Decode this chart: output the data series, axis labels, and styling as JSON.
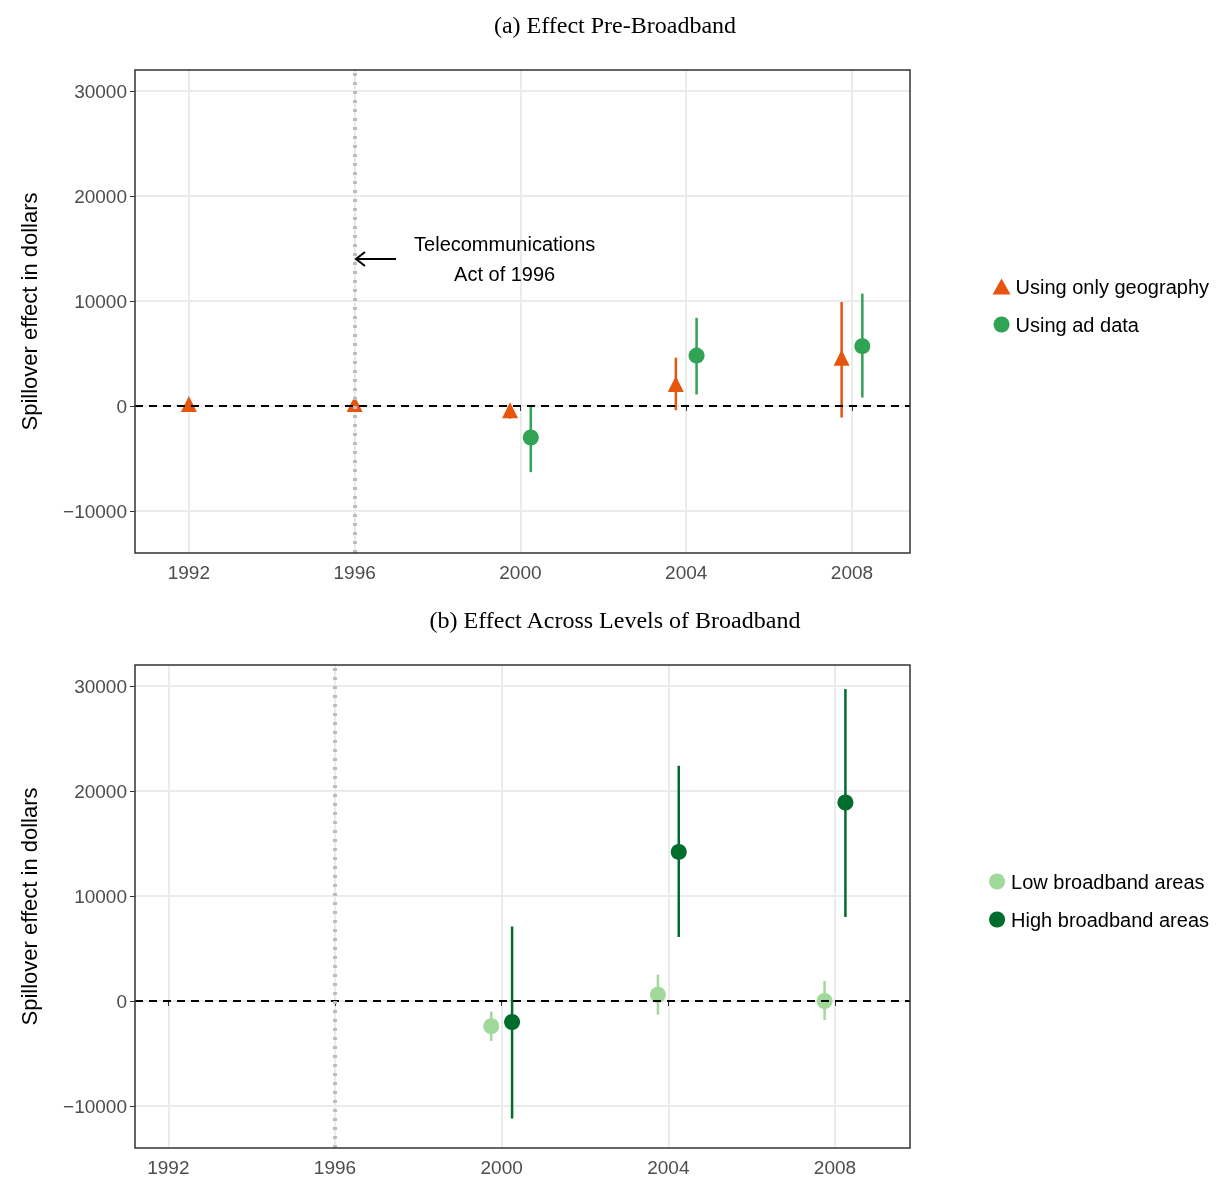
{
  "chart_data": [
    {
      "type": "scatter",
      "title": "(a) Effect Pre-Broadband",
      "ylabel": "Spillover effect in dollars",
      "xlim": [
        1990.7,
        2009.4
      ],
      "xticks": [
        1992,
        1996,
        2000,
        2004,
        2008
      ],
      "ylim": [
        -14000,
        32000
      ],
      "yticks": [
        {
          "value": -10000,
          "label": "−10000"
        },
        0,
        10000,
        20000,
        30000
      ],
      "grid": true,
      "legend": "right",
      "series": [
        {
          "name": "Using only geography",
          "color": "#e6550d",
          "marker": "triangle",
          "x": [
            1992,
            1996,
            1999.75,
            2003.75,
            2007.75
          ],
          "values": [
            200,
            200,
            -400,
            2100,
            4600
          ],
          "errors": [
            null,
            null,
            [
              -1200,
              -400
            ],
            [
              -400,
              4600
            ],
            [
              -1100,
              9900
            ]
          ]
        },
        {
          "name": "Using ad data",
          "color": "#31a354",
          "marker": "circle",
          "x": [
            2000.25,
            2004.25,
            2008.25
          ],
          "values": [
            -3000,
            4800,
            5700
          ],
          "errors": [
            [
              -6300,
              100
            ],
            [
              1100,
              8400
            ],
            [
              800,
              10700
            ]
          ]
        }
      ],
      "ref_lines": [
        {
          "axis": "y",
          "value": 0,
          "color": "#000000",
          "line_style": "dashed"
        },
        {
          "axis": "x",
          "value": 1996,
          "color": "#bdbdbd",
          "line_style": "dotted"
        }
      ],
      "annotations": [
        {
          "text": "Telecommunications\nAct of 1996",
          "x": 1996,
          "y": 14000
        }
      ]
    },
    {
      "type": "scatter",
      "title": "(b) Effect Across Levels of Broadband",
      "ylabel": "Spillover effect in dollars",
      "xlim": [
        1991.2,
        2009.8
      ],
      "xticks": [
        1992,
        1996,
        2000,
        2004,
        2008
      ],
      "ylim": [
        -14000,
        32000
      ],
      "yticks": [
        {
          "value": -10000,
          "label": "−10000"
        },
        0,
        10000,
        20000,
        30000
      ],
      "grid": true,
      "legend": "right",
      "series": [
        {
          "name": "Low broadband areas",
          "color": "#a1d99b",
          "marker": "circle",
          "x": [
            1999.75,
            2003.75,
            2007.75
          ],
          "values": [
            -2400,
            600,
            0
          ],
          "errors": [
            [
              -3800,
              -1000
            ],
            [
              -1300,
              2500
            ],
            [
              -1800,
              1900
            ]
          ]
        },
        {
          "name": "High broadband areas",
          "color": "#006d2c",
          "marker": "circle",
          "x": [
            2000.25,
            2004.25,
            2008.25
          ],
          "values": [
            -2000,
            14200,
            18900
          ],
          "errors": [
            [
              -11200,
              7100
            ],
            [
              6100,
              22400
            ],
            [
              8000,
              29700
            ]
          ]
        }
      ],
      "ref_lines": [
        {
          "axis": "y",
          "value": 0,
          "color": "#000000",
          "line_style": "dashed"
        },
        {
          "axis": "x",
          "value": 1996,
          "color": "#bdbdbd",
          "line_style": "dotted"
        }
      ]
    }
  ]
}
